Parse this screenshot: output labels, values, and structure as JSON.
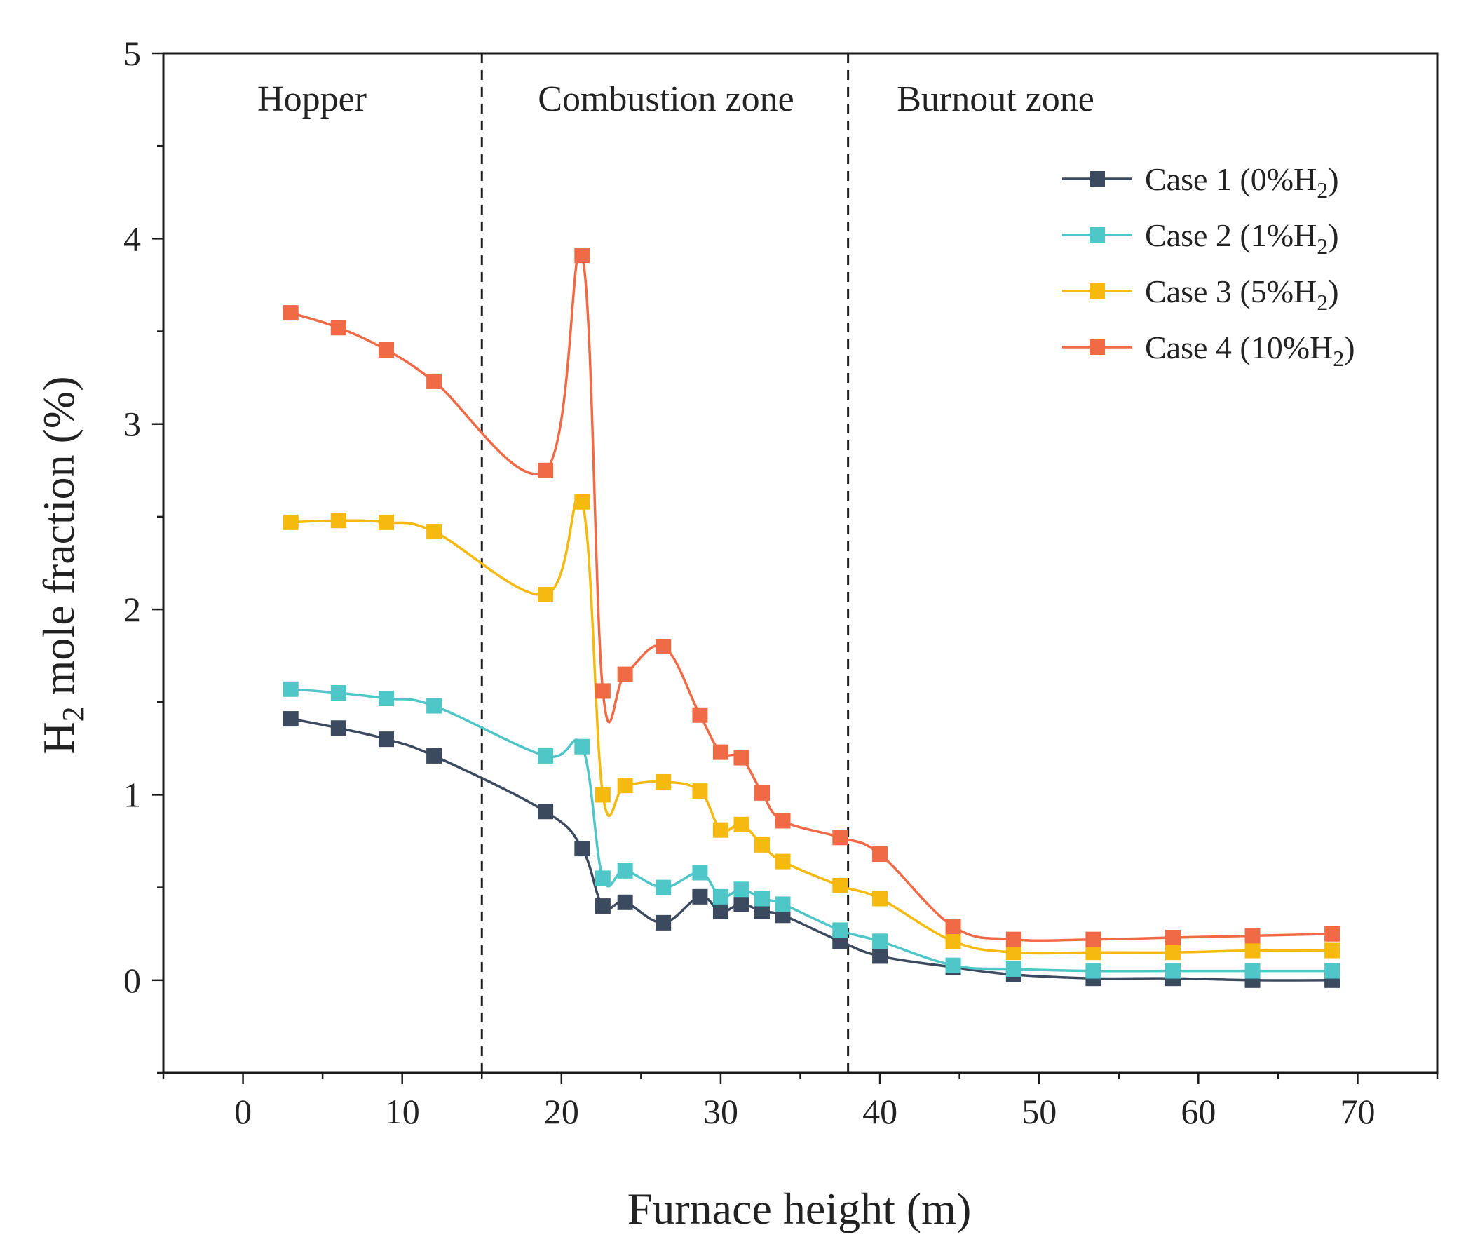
{
  "chart_data": {
    "type": "line",
    "title": "",
    "xlabel": "Furnace height (m)",
    "ylabel": "H2 mole fraction (%)",
    "ylabel_main": "H",
    "ylabel_sub": "2",
    "ylabel_rest": " mole fraction (%)",
    "xlim": [
      -5,
      75
    ],
    "ylim": [
      -0.5,
      5
    ],
    "x_ticks": [
      0,
      10,
      20,
      30,
      40,
      50,
      60,
      70
    ],
    "y_ticks": [
      0,
      1,
      2,
      3,
      4,
      5
    ],
    "zone_dividers": [
      15,
      38
    ],
    "zones": [
      "Hopper",
      "Combustion zone",
      "Burnout zone"
    ],
    "legend_position": "top-right",
    "series": [
      {
        "name": "Case 1 (0%H2)",
        "label_main": "Case 1 (0%H",
        "label_sub": "2",
        "label_end": ")",
        "color": "#3c4a5f",
        "x": [
          3,
          6,
          9,
          12,
          19,
          21.3,
          22.6,
          24,
          26.4,
          28.7,
          30,
          31.3,
          32.6,
          33.9,
          37.5,
          40,
          44.6,
          48.4,
          53.4,
          58.4,
          63.4,
          68.4
        ],
        "y": [
          1.41,
          1.36,
          1.3,
          1.21,
          0.91,
          0.71,
          0.4,
          0.42,
          0.31,
          0.45,
          0.37,
          0.41,
          0.37,
          0.35,
          0.21,
          0.13,
          0.07,
          0.03,
          0.01,
          0.01,
          0.0,
          0.0
        ]
      },
      {
        "name": "Case 2 (1%H2)",
        "label_main": "Case 2 (1%H",
        "label_sub": "2",
        "label_end": ")",
        "color": "#4fc6c8",
        "x": [
          3,
          6,
          9,
          12,
          19,
          21.3,
          22.6,
          24,
          26.4,
          28.7,
          30,
          31.3,
          32.6,
          33.9,
          37.5,
          40,
          44.6,
          48.4,
          53.4,
          58.4,
          63.4,
          68.4
        ],
        "y": [
          1.57,
          1.55,
          1.52,
          1.48,
          1.21,
          1.26,
          0.55,
          0.59,
          0.5,
          0.58,
          0.45,
          0.49,
          0.44,
          0.41,
          0.27,
          0.21,
          0.08,
          0.06,
          0.05,
          0.05,
          0.05,
          0.05
        ]
      },
      {
        "name": "Case 3 (5%H2)",
        "label_main": "Case 3 (5%H",
        "label_sub": "2",
        "label_end": ")",
        "color": "#f5b90f",
        "x": [
          3,
          6,
          9,
          12,
          19,
          21.3,
          22.6,
          24,
          26.4,
          28.7,
          30,
          31.3,
          32.6,
          33.9,
          37.5,
          40,
          44.6,
          48.4,
          53.4,
          58.4,
          63.4,
          68.4
        ],
        "y": [
          2.47,
          2.48,
          2.47,
          2.42,
          2.08,
          2.58,
          1.0,
          1.05,
          1.07,
          1.02,
          0.81,
          0.84,
          0.73,
          0.64,
          0.51,
          0.44,
          0.21,
          0.15,
          0.15,
          0.15,
          0.16,
          0.16
        ]
      },
      {
        "name": "Case 4 (10%H2)",
        "label_main": "Case 4 (10%H",
        "label_sub": "2",
        "label_end": ")",
        "color": "#f06a45",
        "x": [
          3,
          6,
          9,
          12,
          19,
          21.3,
          22.6,
          24,
          26.4,
          28.7,
          30,
          31.3,
          32.6,
          33.9,
          37.5,
          40,
          44.6,
          48.4,
          53.4,
          58.4,
          63.4,
          68.4
        ],
        "y": [
          3.6,
          3.52,
          3.4,
          3.23,
          2.75,
          3.91,
          1.56,
          1.65,
          1.8,
          1.43,
          1.23,
          1.2,
          1.01,
          0.86,
          0.77,
          0.68,
          0.29,
          0.22,
          0.22,
          0.23,
          0.24,
          0.25
        ]
      }
    ]
  }
}
